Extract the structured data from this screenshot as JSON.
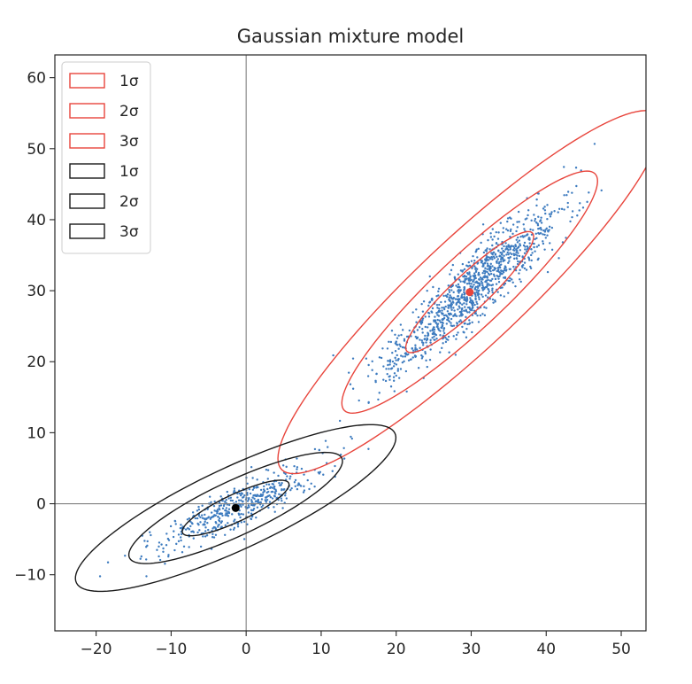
{
  "chart_data": {
    "type": "scatter",
    "title": "Gaussian mixture model",
    "xlabel": "",
    "ylabel": "",
    "xlim": [
      -25.5,
      53.3
    ],
    "ylim": [
      -17.9,
      63.2
    ],
    "grid": false,
    "reference_lines": {
      "x": 0,
      "y": 0,
      "color": "#808080"
    },
    "x_ticks": [
      -20,
      -10,
      0,
      10,
      20,
      30,
      40,
      50
    ],
    "x_tick_labels": [
      "−20",
      "−10",
      "0",
      "10",
      "20",
      "30",
      "40",
      "50"
    ],
    "y_ticks": [
      -10,
      0,
      10,
      20,
      30,
      40,
      50,
      60
    ],
    "y_tick_labels": [
      "−10",
      "0",
      "10",
      "20",
      "30",
      "40",
      "50",
      "60"
    ],
    "legend": {
      "placement": "top-left",
      "entries": [
        {
          "label": "1σ",
          "color": "#e8453c"
        },
        {
          "label": "2σ",
          "color": "#e8453c"
        },
        {
          "label": "3σ",
          "color": "#e8453c"
        },
        {
          "label": "1σ",
          "color": "#1a1a1a"
        },
        {
          "label": "2σ",
          "color": "#1a1a1a"
        },
        {
          "label": "3σ",
          "color": "#1a1a1a"
        }
      ]
    },
    "components": [
      {
        "color": "#e8453c",
        "mean": [
          29.8,
          29.8
        ],
        "center_marker_color": "#e8453c",
        "ellipses": [
          {
            "sigma": 1,
            "width": 23.6,
            "height": 4.9,
            "angle_deg": 45
          },
          {
            "sigma": 2,
            "width": 47.2,
            "height": 9.8,
            "angle_deg": 45
          },
          {
            "sigma": 3,
            "width": 70.8,
            "height": 14.7,
            "angle_deg": 45
          }
        ]
      },
      {
        "color": "#1a1a1a",
        "mean": [
          -1.4,
          -0.6
        ],
        "center_marker_color": "#000000",
        "ellipses": [
          {
            "sigma": 1,
            "width": 15.8,
            "height": 3.8,
            "angle_deg": 26.5
          },
          {
            "sigma": 2,
            "width": 31.6,
            "height": 7.6,
            "angle_deg": 26.5
          },
          {
            "sigma": 3,
            "width": 47.4,
            "height": 11.4,
            "angle_deg": 26.5
          }
        ]
      }
    ],
    "scatter_color": "#3d7bbf",
    "scatter_clusters": [
      {
        "n": 1100,
        "mean": [
          29.8,
          29.8
        ],
        "sd_major": 8.4,
        "sd_minor": 1.7,
        "angle_deg": 45,
        "seed": 17
      },
      {
        "n": 480,
        "mean": [
          -1.4,
          -0.6
        ],
        "sd_major": 6.0,
        "sd_minor": 1.3,
        "angle_deg": 26.5,
        "seed": 53
      }
    ]
  }
}
